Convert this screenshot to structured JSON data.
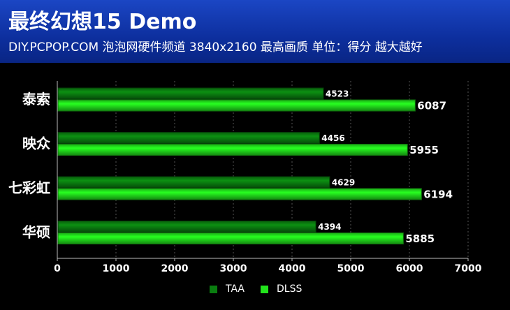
{
  "title": "最终幻想15 Demo",
  "subtitle": "DIY.PCPOP.COM 泡泡网硬件频道 3840x2160 最高画质 单位：得分 越大越好",
  "colors": {
    "header_bg": "#0d2f9e",
    "background": "#000000",
    "taa": "#0a7d10",
    "dlss": "#22e31c",
    "text": "#ffffff"
  },
  "chart_data": {
    "type": "bar",
    "orientation": "horizontal",
    "categories": [
      "泰索",
      "映众",
      "七彩虹",
      "华硕"
    ],
    "series": [
      {
        "name": "TAA",
        "values": [
          4523,
          4456,
          4629,
          4394
        ]
      },
      {
        "name": "DLSS",
        "values": [
          6087,
          5955,
          6194,
          5885
        ]
      }
    ],
    "xlim": [
      0,
      7000
    ],
    "xticks": [
      "0",
      "1000",
      "2000",
      "3000",
      "4000",
      "5000",
      "6000",
      "7000"
    ],
    "grid": true,
    "legend_position": "bottom"
  }
}
